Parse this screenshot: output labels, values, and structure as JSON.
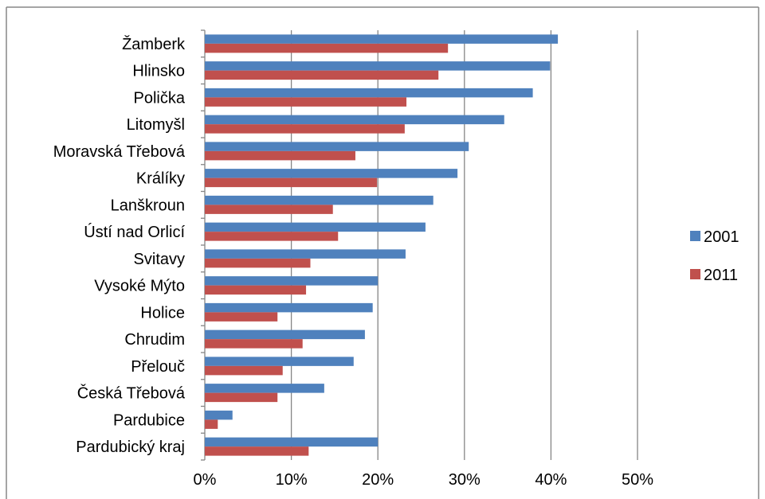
{
  "chart_data": {
    "type": "bar",
    "orientation": "horizontal",
    "categories": [
      "Žamberk",
      "Hlinsko",
      "Polička",
      "Litomyšl",
      "Moravská Třebová",
      "Králíky",
      "Lanškroun",
      "Ústí nad Orlicí",
      "Svitavy",
      "Vysoké Mýto",
      "Holice",
      "Chrudim",
      "Přelouč",
      "Česká Třebová",
      "Pardubice",
      "Pardubický kraj"
    ],
    "series": [
      {
        "name": "2001",
        "color": "#4f81bd",
        "values": [
          40.8,
          39.9,
          37.9,
          34.6,
          30.5,
          29.2,
          26.4,
          25.5,
          23.2,
          20.0,
          19.4,
          18.5,
          17.2,
          13.8,
          3.2,
          20.0
        ]
      },
      {
        "name": "2011",
        "color": "#c0504d",
        "values": [
          28.1,
          27.0,
          23.3,
          23.1,
          17.4,
          19.9,
          14.8,
          15.4,
          12.2,
          11.7,
          8.4,
          11.3,
          9.0,
          8.4,
          1.5,
          12.0
        ]
      }
    ],
    "x_ticks": [
      "0%",
      "10%",
      "20%",
      "30%",
      "40%",
      "50%"
    ],
    "xlim": [
      0,
      50
    ],
    "grid": true,
    "legend_position": "right",
    "title": "",
    "xlabel": "",
    "ylabel": ""
  }
}
